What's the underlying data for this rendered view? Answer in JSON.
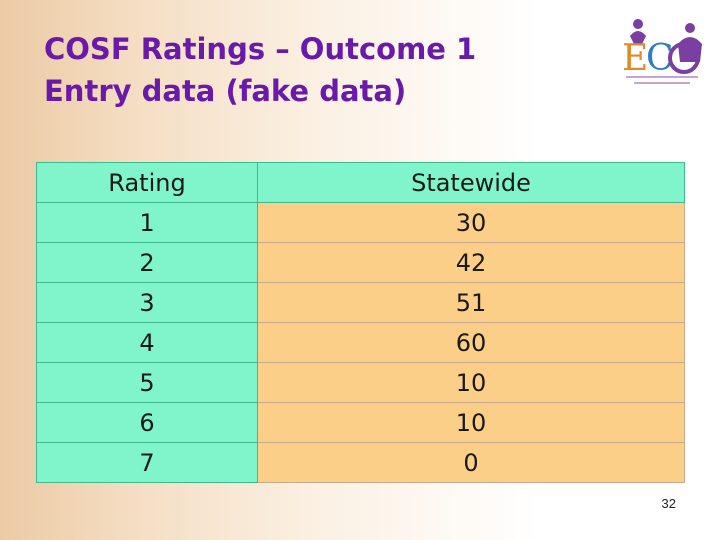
{
  "slide": {
    "title_line1": "COSF Ratings – Outcome 1",
    "title_line2": "Entry data (fake data)",
    "page_number": "32"
  },
  "table": {
    "headers": [
      "Rating",
      "Statewide"
    ],
    "rows": [
      [
        "1",
        "30"
      ],
      [
        "2",
        "42"
      ],
      [
        "3",
        "51"
      ],
      [
        "4",
        "60"
      ],
      [
        "5",
        "10"
      ],
      [
        "6",
        "10"
      ],
      [
        "7",
        "0"
      ]
    ]
  },
  "logo": {
    "icon": "eco-logo"
  },
  "colors": {
    "title": "#6a1aa8",
    "header_fill": "#80f5cc",
    "cell_fill": "#fccf88"
  }
}
